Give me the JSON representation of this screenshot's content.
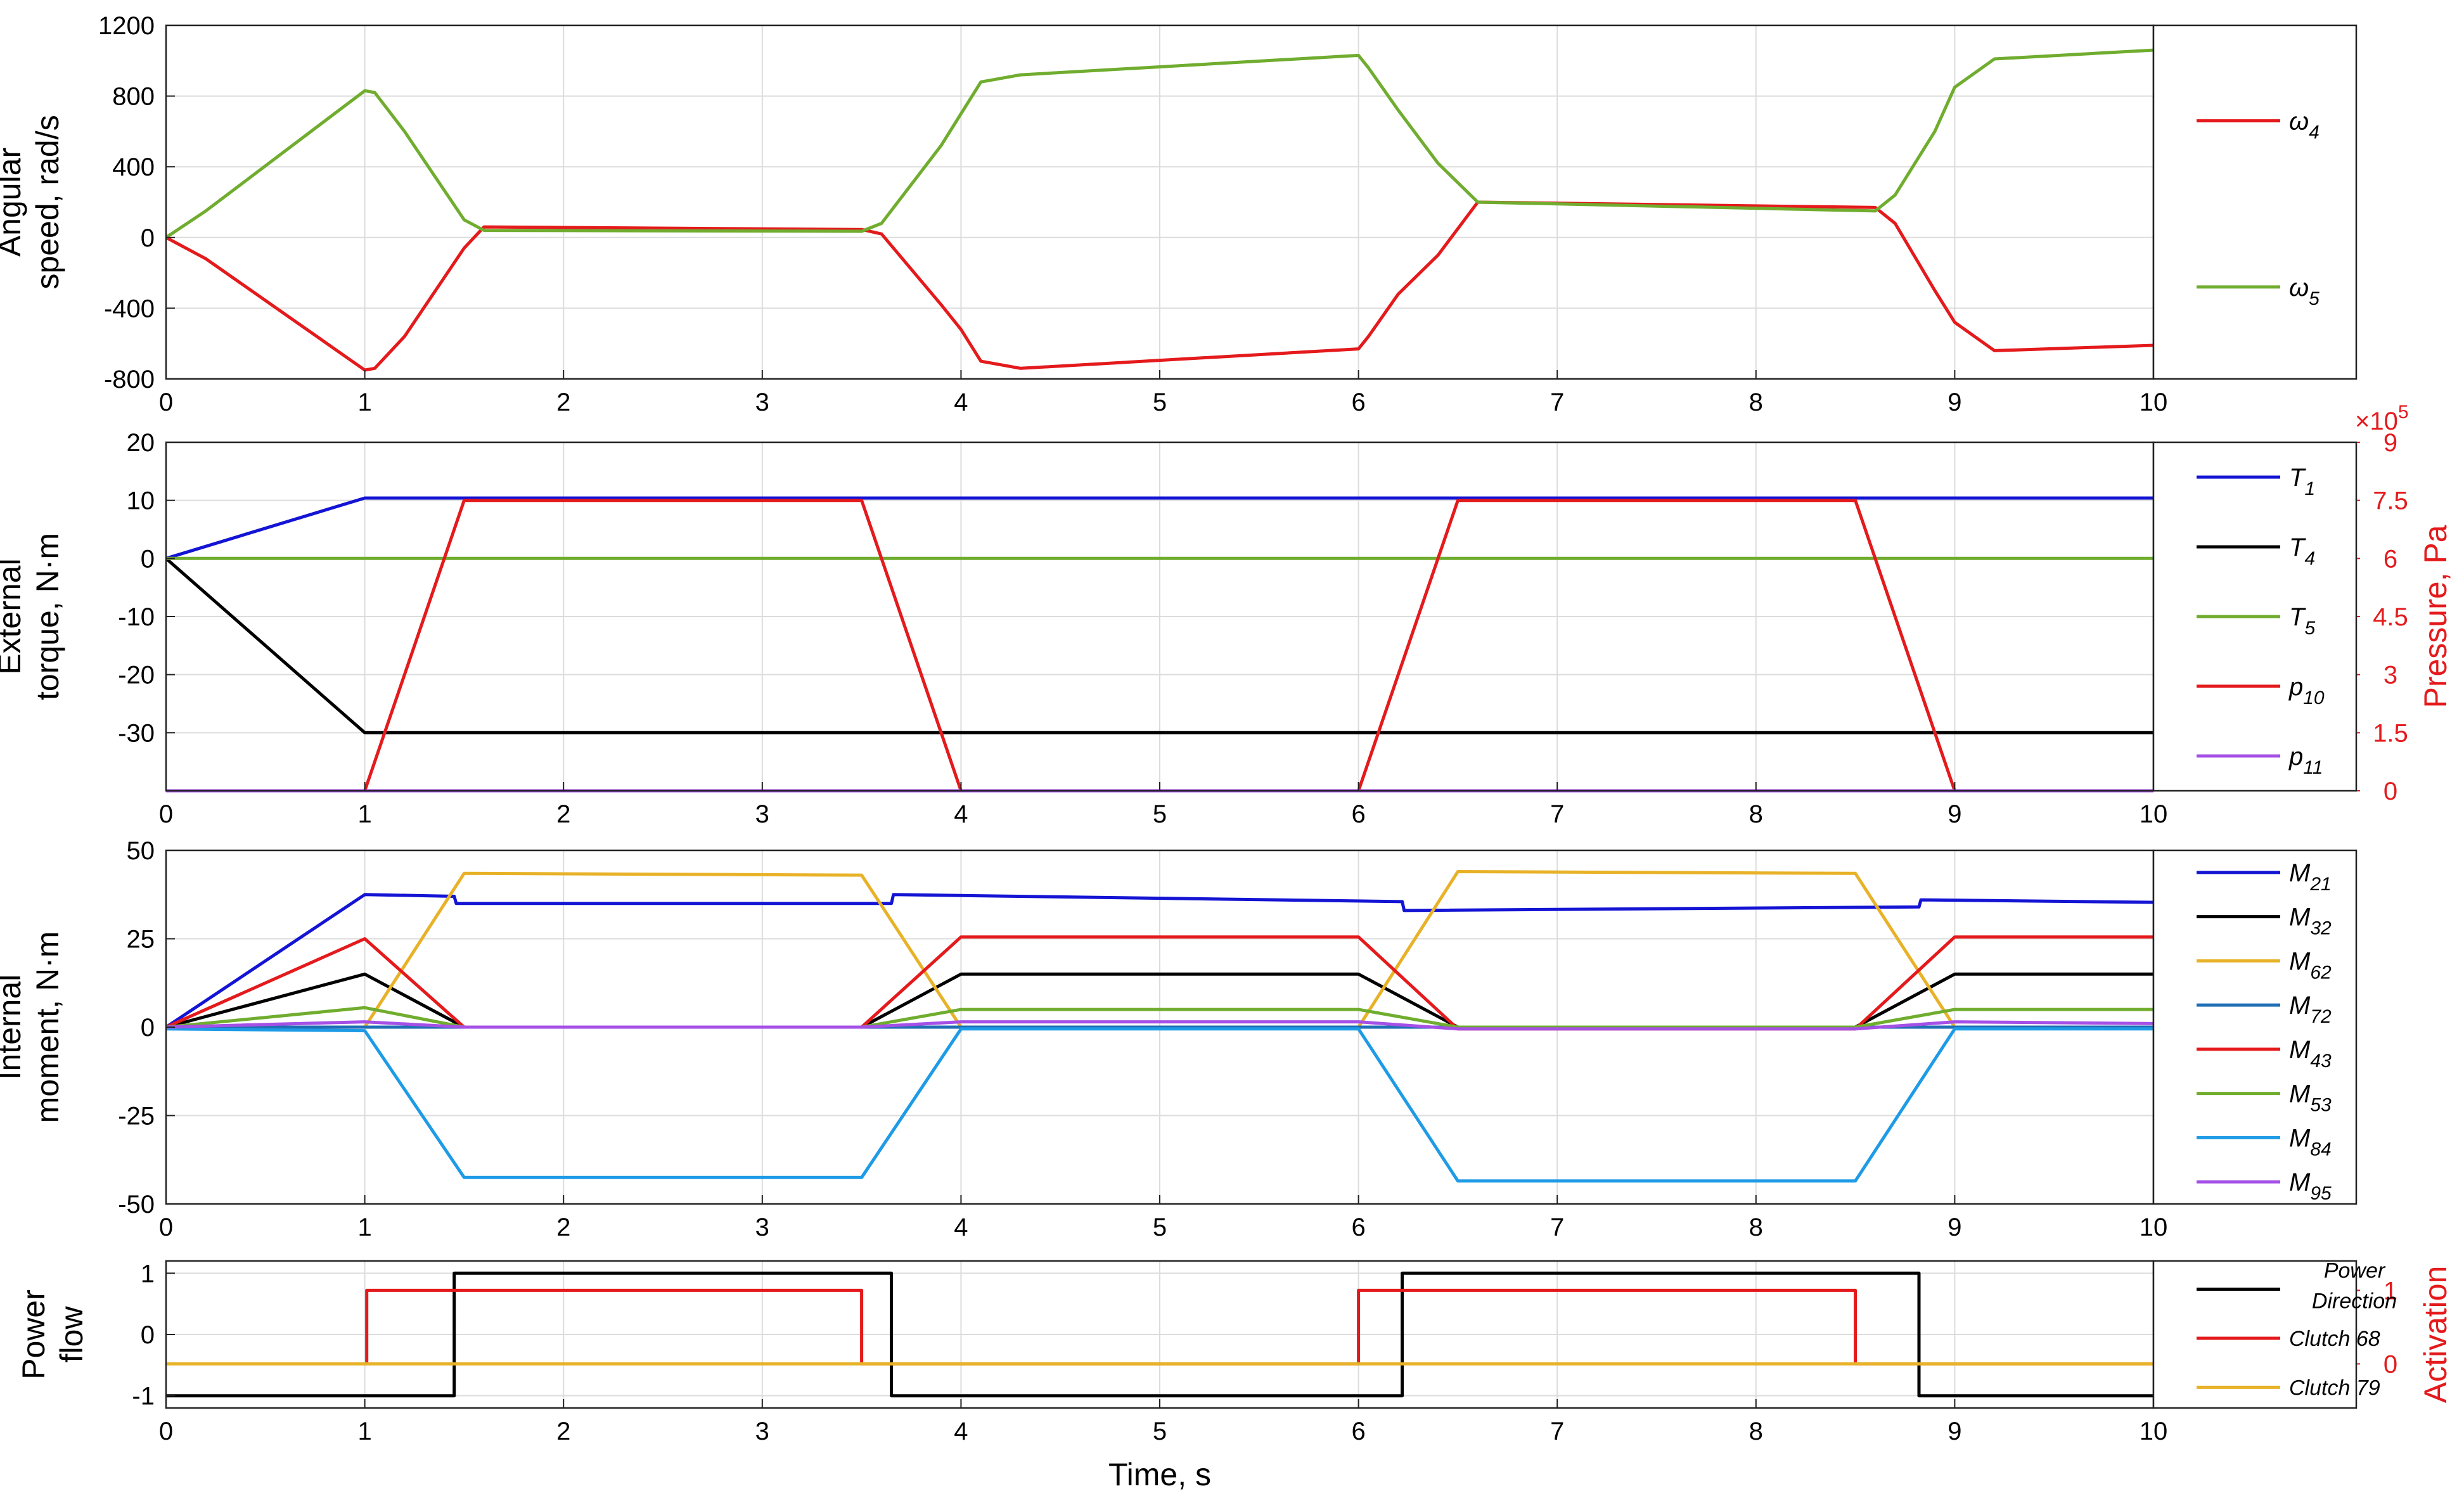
{
  "colors": {
    "red": "#e41a1c",
    "green": "#70ad2f",
    "blue": "#1414d4",
    "black": "#000000",
    "orange": "#e8b228",
    "steel": "#1f6fb5",
    "lightblue": "#1e9be6",
    "purple": "#a550e6",
    "grid": "#dcdcdc"
  },
  "chart_data": [
    {
      "type": "line",
      "ylabel": [
        "Angular",
        "speed, rad/s"
      ],
      "xlim": [
        0,
        10
      ],
      "ylim": [
        -800,
        1200
      ],
      "xticks": [
        0,
        1,
        2,
        3,
        4,
        5,
        6,
        7,
        8,
        9,
        10
      ],
      "xtick_labels": [
        "0",
        "1",
        "2",
        "3",
        "4",
        "5",
        "6",
        "7",
        "8",
        "9",
        "10"
      ],
      "yticks": [
        -800,
        -400,
        0,
        400,
        800,
        1200
      ],
      "ytick_labels": [
        "-800",
        "-400",
        "0",
        "400",
        "800",
        "1200"
      ],
      "grid": true,
      "legend": "right",
      "series": [
        {
          "name": "ω",
          "sub": "4",
          "color": "red",
          "x": [
            0,
            0.2,
            1,
            1.05,
            1.2,
            1.5,
            1.6,
            3.5,
            3.6,
            3.9,
            4.0,
            4.1,
            4.3,
            6.0,
            6.05,
            6.2,
            6.4,
            6.6,
            8.6,
            8.7,
            8.9,
            9.0,
            9.2,
            10
          ],
          "y": [
            0,
            -120,
            -750,
            -740,
            -560,
            -60,
            60,
            45,
            20,
            -380,
            -520,
            -700,
            -740,
            -630,
            -560,
            -320,
            -100,
            200,
            170,
            80,
            -300,
            -480,
            -640,
            -610
          ]
        },
        {
          "name": "ω",
          "sub": "5",
          "color": "green",
          "x": [
            0,
            0.2,
            1,
            1.05,
            1.2,
            1.5,
            1.6,
            3.5,
            3.6,
            3.9,
            4.0,
            4.1,
            4.3,
            6.0,
            6.05,
            6.2,
            6.4,
            6.6,
            8.6,
            8.7,
            8.9,
            9.0,
            9.2,
            10
          ],
          "y": [
            0,
            150,
            830,
            820,
            600,
            100,
            40,
            35,
            80,
            520,
            700,
            880,
            920,
            1030,
            960,
            720,
            420,
            200,
            150,
            240,
            600,
            850,
            1010,
            1060
          ]
        }
      ]
    },
    {
      "type": "line",
      "ylabel": [
        "External",
        "torque, N·m"
      ],
      "y2label": "Pressure, Pa",
      "y2_exponent": "×10",
      "y2_exponent_power": "5",
      "xlim": [
        0,
        10
      ],
      "ylim": [
        -40,
        20
      ],
      "y2lim": [
        0,
        9
      ],
      "xticks": [
        0,
        1,
        2,
        3,
        4,
        5,
        6,
        7,
        8,
        9,
        10
      ],
      "xtick_labels": [
        "0",
        "1",
        "2",
        "3",
        "4",
        "5",
        "6",
        "7",
        "8",
        "9",
        "10"
      ],
      "yticks": [
        -30,
        -20,
        -10,
        0,
        10,
        20
      ],
      "ytick_labels": [
        "-30",
        "-20",
        "-10",
        "0",
        "10",
        "20"
      ],
      "y2ticks": [
        0,
        1.5,
        3,
        4.5,
        6,
        7.5,
        9
      ],
      "y2tick_labels": [
        "0",
        "1.5",
        "3",
        "4.5",
        "6",
        "7.5",
        "9"
      ],
      "grid": true,
      "legend": "right",
      "series": [
        {
          "name": "T",
          "sub": "1",
          "color": "blue",
          "axis": "left",
          "x": [
            0,
            1,
            10
          ],
          "y": [
            0,
            10.4,
            10.4
          ]
        },
        {
          "name": "T",
          "sub": "4",
          "color": "black",
          "axis": "left",
          "x": [
            0,
            1,
            10
          ],
          "y": [
            0,
            -30,
            -30
          ]
        },
        {
          "name": "T",
          "sub": "5",
          "color": "green",
          "axis": "left",
          "x": [
            0,
            10
          ],
          "y": [
            0,
            0
          ]
        },
        {
          "name": "p",
          "sub": "10",
          "color": "red",
          "axis": "right",
          "x": [
            1,
            1.5,
            3.5,
            4,
            6,
            6.5,
            8.5,
            9
          ],
          "y": [
            0,
            7.5,
            7.5,
            0,
            0,
            7.5,
            7.5,
            0
          ]
        },
        {
          "name": "p",
          "sub": "11",
          "color": "purple",
          "axis": "right",
          "x": [
            0,
            10
          ],
          "y": [
            0,
            0
          ]
        }
      ]
    },
    {
      "type": "line",
      "ylabel": [
        "Internal",
        "moment, N·m"
      ],
      "xlim": [
        0,
        10
      ],
      "ylim": [
        -50,
        50
      ],
      "xticks": [
        0,
        1,
        2,
        3,
        4,
        5,
        6,
        7,
        8,
        9,
        10
      ],
      "xtick_labels": [
        "0",
        "1",
        "2",
        "3",
        "4",
        "5",
        "6",
        "7",
        "8",
        "9",
        "10"
      ],
      "yticks": [
        -50,
        -25,
        0,
        25,
        50
      ],
      "ytick_labels": [
        "-50",
        "-25",
        "0",
        "25",
        "50"
      ],
      "grid": true,
      "legend": "right",
      "series": [
        {
          "name": "M",
          "sub": "21",
          "color": "blue",
          "x": [
            0,
            1,
            1.45,
            1.46,
            3.65,
            3.66,
            6.22,
            6.23,
            8.82,
            8.83,
            10
          ],
          "y": [
            0,
            37.5,
            37,
            35,
            35,
            37.5,
            35.5,
            33,
            34,
            36,
            35.3
          ]
        },
        {
          "name": "M",
          "sub": "32",
          "color": "black",
          "x": [
            0,
            1,
            1.5,
            3.5,
            4,
            6,
            6.5,
            8.5,
            9,
            10
          ],
          "y": [
            0,
            15,
            0,
            0,
            15,
            15,
            0,
            0,
            15,
            15
          ]
        },
        {
          "name": "M",
          "sub": "62",
          "color": "orange",
          "x": [
            0,
            1,
            1.5,
            3.5,
            4,
            6,
            6.5,
            8.5,
            9,
            10
          ],
          "y": [
            0,
            0,
            43.5,
            43,
            0,
            0,
            44,
            43.5,
            0,
            0
          ]
        },
        {
          "name": "M",
          "sub": "72",
          "color": "steel",
          "x": [
            0,
            10
          ],
          "y": [
            0,
            0
          ]
        },
        {
          "name": "M",
          "sub": "43",
          "color": "red",
          "x": [
            0,
            1,
            1.5,
            3.5,
            4,
            6,
            6.5,
            8.5,
            9,
            10
          ],
          "y": [
            0,
            25,
            0,
            0,
            25.5,
            25.5,
            -0.5,
            -0.5,
            25.5,
            25.5
          ]
        },
        {
          "name": "M",
          "sub": "53",
          "color": "green",
          "x": [
            0,
            1,
            1.5,
            3.5,
            4,
            6,
            6.5,
            8.5,
            9,
            10
          ],
          "y": [
            0,
            5.5,
            0,
            0,
            5,
            5,
            0,
            0,
            5,
            5
          ]
        },
        {
          "name": "M",
          "sub": "84",
          "color": "lightblue",
          "x": [
            0,
            1,
            1.5,
            3.5,
            4,
            6,
            6.5,
            8.5,
            9,
            10
          ],
          "y": [
            -0.5,
            -1,
            -42.5,
            -42.5,
            -0.5,
            -0.5,
            -43.5,
            -43.5,
            -0.5,
            -0.5
          ]
        },
        {
          "name": "M",
          "sub": "95",
          "color": "purple",
          "x": [
            0,
            1,
            1.5,
            3.5,
            4,
            6,
            6.5,
            8.5,
            9,
            10
          ],
          "y": [
            0,
            1.5,
            0,
            0,
            1.5,
            1.5,
            -0.5,
            -0.5,
            1.5,
            1
          ]
        }
      ]
    },
    {
      "type": "line",
      "ylabel": [
        "Power",
        "flow"
      ],
      "y2label": "Activation",
      "xlabel": "Time, s",
      "xlim": [
        0,
        10
      ],
      "ylim": [
        -1.2,
        1.2
      ],
      "y2lim": [
        -0.6,
        1.4
      ],
      "xticks": [
        0,
        1,
        2,
        3,
        4,
        5,
        6,
        7,
        8,
        9,
        10
      ],
      "xtick_labels": [
        "0",
        "1",
        "2",
        "3",
        "4",
        "5",
        "6",
        "7",
        "8",
        "9",
        "10"
      ],
      "yticks": [
        -1,
        0,
        1
      ],
      "ytick_labels": [
        "-1",
        "0",
        "1"
      ],
      "y2ticks": [
        0,
        1
      ],
      "y2tick_labels": [
        "0",
        "1"
      ],
      "grid": true,
      "legend": "right",
      "series": [
        {
          "name": "Power",
          "name2": "Direction",
          "color": "black",
          "axis": "left",
          "x": [
            0,
            1.45,
            1.45,
            3.65,
            3.65,
            6.22,
            6.22,
            8.82,
            8.82,
            10
          ],
          "y": [
            -1,
            -1,
            1,
            1,
            -1,
            -1,
            1,
            1,
            -1,
            -1
          ]
        },
        {
          "name": "Clutch 68",
          "color": "red",
          "axis": "right",
          "x": [
            1,
            1.01,
            1.01,
            3.5,
            3.5,
            6.0,
            6.0,
            8.5,
            8.5,
            10
          ],
          "y": [
            0,
            0,
            1,
            1,
            0,
            0,
            1,
            1,
            0,
            0
          ]
        },
        {
          "name": "Clutch 79",
          "color": "orange",
          "axis": "right",
          "x": [
            0,
            10
          ],
          "y": [
            0,
            0
          ]
        }
      ]
    }
  ]
}
